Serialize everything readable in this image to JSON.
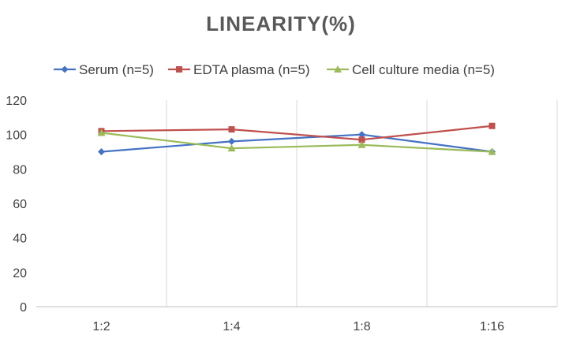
{
  "chart_data": {
    "type": "line",
    "title": "LINEARITY(%)",
    "xlabel": "",
    "ylabel": "",
    "categories": [
      "1:2",
      "1:4",
      "1:8",
      "1:16"
    ],
    "ylim": [
      0,
      120
    ],
    "yticks": [
      0,
      20,
      40,
      60,
      80,
      100,
      120
    ],
    "grid": "vertical",
    "legend_position": "top",
    "series": [
      {
        "name": "Serum (n=5)",
        "color": "#4472c4",
        "marker": "diamond",
        "values": [
          90,
          96,
          100,
          90
        ]
      },
      {
        "name": "EDTA plasma (n=5)",
        "color": "#c0504d",
        "marker": "square",
        "values": [
          102,
          103,
          97,
          105
        ]
      },
      {
        "name": "Cell culture media (n=5)",
        "color": "#9bbb59",
        "marker": "triangle",
        "values": [
          101,
          92,
          94,
          90
        ]
      }
    ]
  }
}
